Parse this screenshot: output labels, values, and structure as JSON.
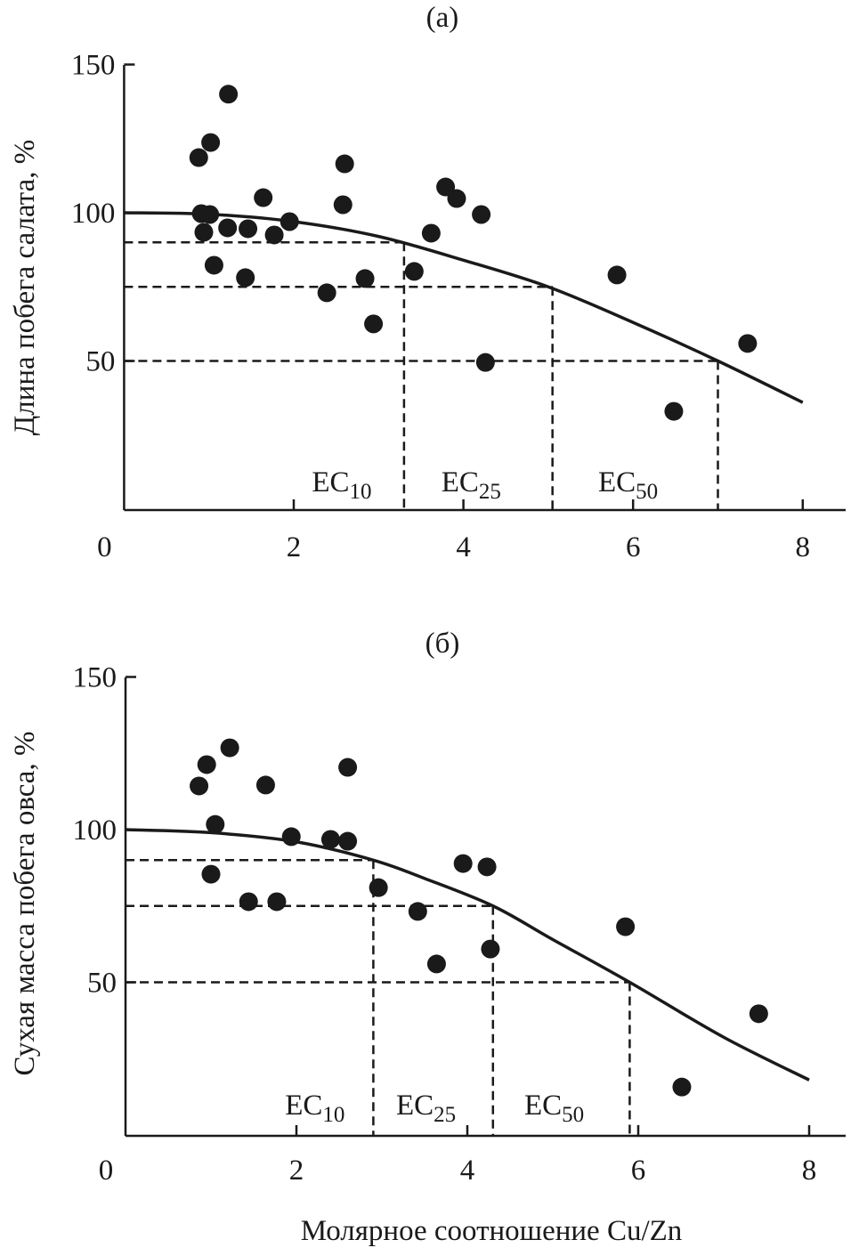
{
  "xlabel": "Молярное соотношение Cu/Zn",
  "chart_data": [
    {
      "type": "scatter",
      "title": "(а)",
      "ylabel": "Длина побега салата, %",
      "xlim": [
        0,
        8.5
      ],
      "ylim": [
        0,
        150
      ],
      "xticks": [
        "0",
        "2",
        "4",
        "6",
        "8"
      ],
      "yticks": [
        "50",
        "100",
        "150"
      ],
      "grid": false,
      "points": {
        "x": [
          0.88,
          1.02,
          1.23,
          0.91,
          1.01,
          0.94,
          1.22,
          1.46,
          1.06,
          1.43,
          1.64,
          1.77,
          1.95,
          2.6,
          2.58,
          2.39,
          2.84,
          2.94,
          3.42,
          3.62,
          3.79,
          3.92,
          4.21,
          4.26,
          5.81,
          6.48,
          7.35
        ],
        "y": [
          118.6,
          123.7,
          140,
          99.7,
          99.4,
          93.4,
          94.9,
          94.6,
          82.3,
          78.1,
          105.1,
          92.5,
          97,
          116.5,
          102.7,
          73,
          77.8,
          62.5,
          80.2,
          93.1,
          108.7,
          104.8,
          99.4,
          49.5,
          79,
          33,
          55.9
        ]
      },
      "curve": {
        "x": [
          0,
          1,
          2,
          3,
          4,
          5,
          6,
          7,
          8
        ],
        "y": [
          100,
          99.5,
          97,
          92,
          84,
          75,
          63,
          50,
          36
        ]
      },
      "ec_levels": [
        {
          "label": "EC",
          "sub": "10",
          "level": 90,
          "x": 3.3
        },
        {
          "label": "EC",
          "sub": "25",
          "level": 75,
          "x": 5.05
        },
        {
          "label": "EC",
          "sub": "50",
          "level": 50,
          "x": 7.0
        }
      ]
    },
    {
      "type": "scatter",
      "title": "(б)",
      "ylabel": "Сухая масса побега овса, %",
      "xlim": [
        0,
        8.5
      ],
      "ylim": [
        0,
        150
      ],
      "xticks": [
        "0",
        "2",
        "4",
        "6",
        "8"
      ],
      "yticks": [
        "50",
        "100",
        "150"
      ],
      "grid": false,
      "points": {
        "x": [
          0.86,
          0.95,
          1.22,
          1.05,
          1.0,
          1.44,
          1.77,
          1.64,
          1.94,
          2.4,
          2.6,
          2.6,
          2.96,
          3.42,
          3.64,
          3.95,
          4.23,
          4.27,
          5.85,
          6.51,
          7.41
        ],
        "y": [
          114.3,
          121.3,
          126.8,
          101.7,
          85.4,
          76.4,
          76.4,
          114.6,
          97.7,
          96.8,
          96.2,
          120.4,
          81,
          73.2,
          56,
          88.9,
          87.8,
          60.9,
          68.2,
          15.7,
          39.7
        ]
      },
      "curve": {
        "x": [
          0,
          1,
          2,
          2.9,
          3.5,
          4.3,
          5,
          5.9,
          7,
          8
        ],
        "y": [
          100,
          99,
          96,
          90,
          84,
          75,
          64,
          50,
          32,
          18
        ]
      },
      "ec_levels": [
        {
          "label": "EC",
          "sub": "10",
          "level": 90,
          "x": 2.9
        },
        {
          "label": "EC",
          "sub": "25",
          "level": 75,
          "x": 4.3
        },
        {
          "label": "EC",
          "sub": "50",
          "level": 50,
          "x": 5.9
        }
      ]
    }
  ]
}
